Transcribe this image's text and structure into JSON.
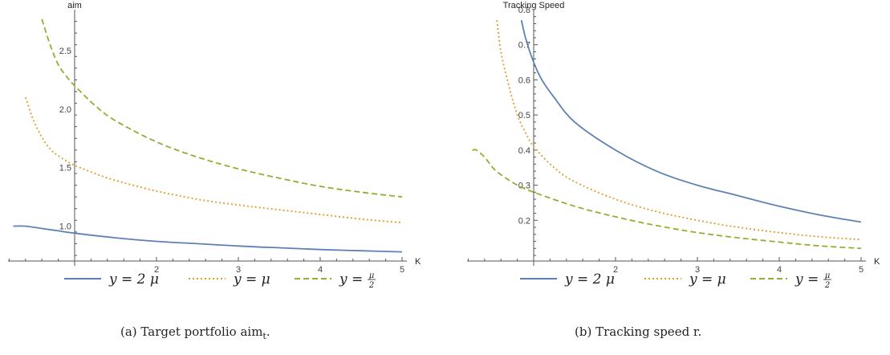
{
  "colors": {
    "blue": "#5E81B5",
    "orange": "#E19C24",
    "green": "#8FB032",
    "axis": "#555555"
  },
  "chart_data": [
    {
      "type": "line",
      "ylabel": "aim",
      "xlabel": "K",
      "xlim": [
        0.2,
        5.1
      ],
      "ylim": [
        0.75,
        2.85
      ],
      "xticks": [
        2,
        3,
        4,
        5
      ],
      "yticks": [
        1.0,
        1.5,
        2.0,
        2.5
      ],
      "ytick_labels": [
        "1.0",
        "1.5",
        "2.0",
        "2.5"
      ],
      "caption": "(a) Target portfolio aim",
      "caption_sub": "t",
      "series": [
        {
          "name": "y = 2 μ",
          "style": "solid",
          "x": [
            0.25,
            0.4,
            0.6,
            0.8,
            1.0,
            1.5,
            2.0,
            2.5,
            3.0,
            3.5,
            4.0,
            4.5,
            5.0
          ],
          "y": [
            1.0,
            1.0,
            0.98,
            0.96,
            0.94,
            0.9,
            0.87,
            0.85,
            0.83,
            0.815,
            0.8,
            0.79,
            0.78
          ]
        },
        {
          "name": "y = μ",
          "style": "dotted",
          "x": [
            0.4,
            0.5,
            0.6,
            0.7,
            0.8,
            1.0,
            1.25,
            1.5,
            2.0,
            2.5,
            3.0,
            3.5,
            4.0,
            4.5,
            5.0
          ],
          "y": [
            2.1,
            1.9,
            1.76,
            1.66,
            1.6,
            1.52,
            1.45,
            1.39,
            1.3,
            1.23,
            1.18,
            1.14,
            1.1,
            1.06,
            1.03
          ]
        },
        {
          "name": "y = μ/2",
          "style": "dashed",
          "x": [
            0.6,
            0.7,
            0.8,
            0.9,
            1.0,
            1.25,
            1.5,
            2.0,
            2.5,
            3.0,
            3.5,
            4.0,
            4.5,
            5.0
          ],
          "y": [
            2.77,
            2.55,
            2.38,
            2.28,
            2.2,
            2.03,
            1.9,
            1.72,
            1.59,
            1.49,
            1.41,
            1.34,
            1.29,
            1.25
          ]
        }
      ]
    },
    {
      "type": "line",
      "ylabel": "Tracking Speed",
      "xlabel": "K",
      "xlim": [
        0.2,
        5.1
      ],
      "ylim": [
        0.1,
        0.8
      ],
      "xticks": [
        2,
        3,
        4,
        5
      ],
      "yticks": [
        0.2,
        0.3,
        0.4,
        0.5,
        0.6,
        0.7,
        0.8
      ],
      "ytick_labels": [
        "0.2",
        "0.3",
        "0.4",
        "0.5",
        "0.6",
        "0.7",
        "0.8"
      ],
      "caption": "(b) Tracking speed r.",
      "caption_sub": "",
      "series": [
        {
          "name": "y = 2 μ",
          "style": "solid",
          "x": [
            0.85,
            0.9,
            1.0,
            1.1,
            1.25,
            1.5,
            2.0,
            2.5,
            3.0,
            3.5,
            4.0,
            4.5,
            5.0
          ],
          "y": [
            0.77,
            0.72,
            0.65,
            0.6,
            0.55,
            0.48,
            0.4,
            0.34,
            0.3,
            0.27,
            0.24,
            0.215,
            0.195
          ]
        },
        {
          "name": "y = μ",
          "style": "dotted",
          "x": [
            0.55,
            0.6,
            0.7,
            0.8,
            0.9,
            1.0,
            1.25,
            1.5,
            2.0,
            2.5,
            3.0,
            3.5,
            4.0,
            4.5,
            5.0
          ],
          "y": [
            0.77,
            0.68,
            0.58,
            0.5,
            0.45,
            0.41,
            0.35,
            0.31,
            0.26,
            0.225,
            0.2,
            0.18,
            0.165,
            0.153,
            0.145
          ]
        },
        {
          "name": "y = μ/2",
          "style": "dashed",
          "x": [
            0.25,
            0.3,
            0.4,
            0.5,
            0.6,
            0.8,
            1.0,
            1.5,
            2.0,
            2.5,
            3.0,
            3.5,
            4.0,
            4.5,
            5.0
          ],
          "y": [
            0.4,
            0.4,
            0.38,
            0.35,
            0.33,
            0.3,
            0.28,
            0.24,
            0.21,
            0.185,
            0.165,
            0.15,
            0.138,
            0.127,
            0.12
          ]
        }
      ]
    }
  ],
  "legend": [
    {
      "prefix": "y = 2 ",
      "symbol": "μ",
      "style": "solid",
      "color": "#5E81B5"
    },
    {
      "prefix": "y = ",
      "symbol": "μ",
      "style": "dotted",
      "color": "#E19C24"
    },
    {
      "prefix": "y = ",
      "symbol": "",
      "frac_num": "μ",
      "frac_den": "2",
      "style": "dashed",
      "color": "#8FB032"
    }
  ]
}
